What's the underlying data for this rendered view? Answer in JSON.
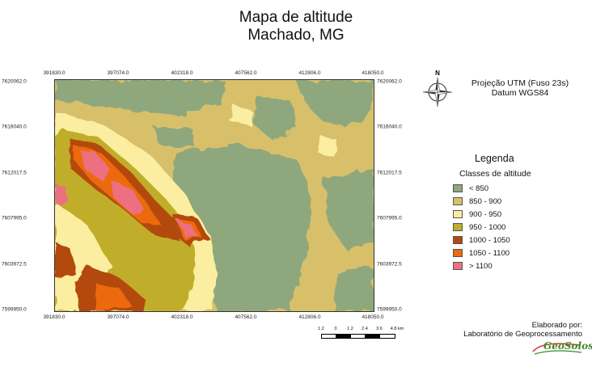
{
  "title": {
    "line1": "Mapa de altitude",
    "line2": "Machado, MG"
  },
  "axes": {
    "x_ticks": [
      "391830.0",
      "397074.0",
      "402318.0",
      "407562.0",
      "412806.0",
      "418050.0"
    ],
    "y_ticks": [
      "7620062.0",
      "7616040.0",
      "7612017.5",
      "7607995.0",
      "7603972.5",
      "7599950.0"
    ]
  },
  "projection": {
    "line1": "Projeção UTM (Fuso 23s)",
    "line2": "Datum WGS84"
  },
  "compass": {
    "label": "N",
    "icon": "north-arrow-icon"
  },
  "legend": {
    "title": "Legenda",
    "subtitle": "Classes de altitude",
    "items": [
      {
        "label": "< 850",
        "color": "#8fa77d"
      },
      {
        "label": "850 - 900",
        "color": "#d8c06a"
      },
      {
        "label": "900 - 950",
        "color": "#fbeea0"
      },
      {
        "label": "950 - 1000",
        "color": "#c0ae2b"
      },
      {
        "label": "1000 - 1050",
        "color": "#b4480c"
      },
      {
        "label": "1050 - 1100",
        "color": "#ec6a10"
      },
      {
        "label": "> 1100",
        "color": "#ec7080"
      }
    ]
  },
  "scale": {
    "labels": [
      "1.2",
      "0",
      "1.2",
      "2.4",
      "3.6",
      "4.8 km"
    ]
  },
  "credit": {
    "line1": "Elaborado por:",
    "line2": "Laboratório de Geoprocessamento",
    "logo": "GeoSolos"
  }
}
